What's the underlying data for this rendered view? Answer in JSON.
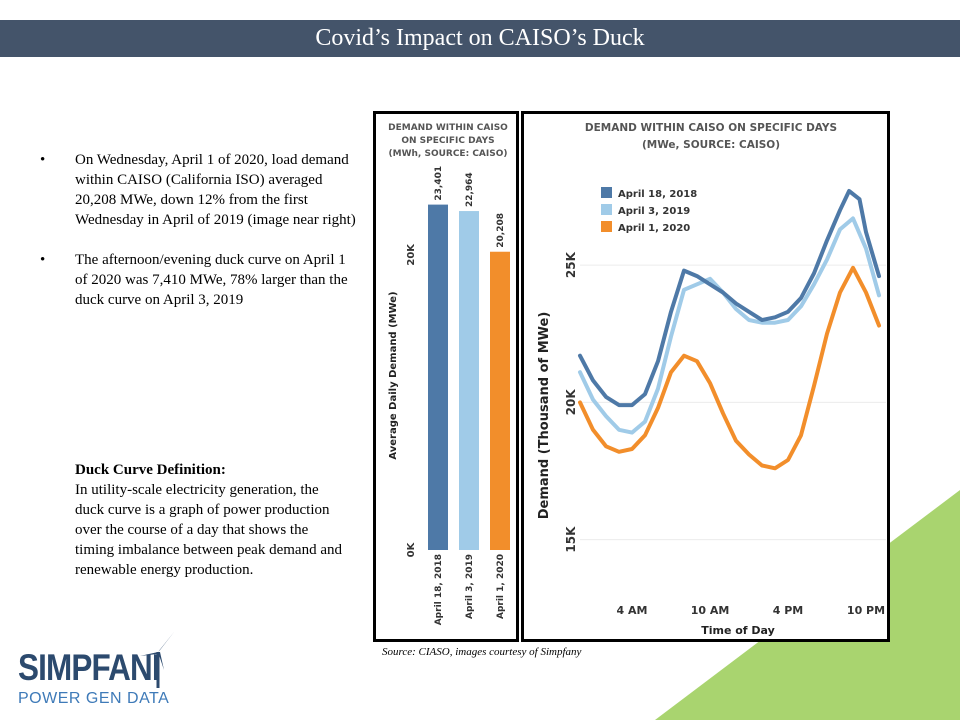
{
  "title": "Covid’s Impact on CAISO’s Duck",
  "bullets": [
    "On Wednesday, April 1 of 2020, load demand within CAISO (California ISO) averaged 20,208 MWe, down 12% from the first Wednesday in April of 2019 (image near right)",
    "The afternoon/evening duck curve on April 1 of 2020 was 7,410 MWe, 78% larger than the duck curve on April 3, 2019"
  ],
  "definition": {
    "term": "Duck Curve Definition:",
    "text": "In utility-scale electricity generation, the duck curve is a graph of power production over the course of a day that shows the timing imbalance between peak demand and renewable energy production."
  },
  "source": "Source: CIASO, images courtesy of Simpfany",
  "logo": {
    "name": "SIMPFANI",
    "tagline": "POWER GEN DATA"
  },
  "colors": {
    "title_bar": "#44546a",
    "series_2018": "#4e79a7",
    "series_2019": "#a0cbe8",
    "series_2020": "#f28e2b",
    "accent_green": "#a9d46f"
  },
  "chart_data": [
    {
      "type": "bar",
      "title": [
        "DEMAND WITHIN CAISO",
        "ON SPECIFIC DAYS",
        "(MWh, SOURCE: CAISO)"
      ],
      "ylabel": "Average Daily Demand (MWe)",
      "ylim": [
        0,
        25000
      ],
      "y_ticks": [
        0,
        20000
      ],
      "y_tick_labels": [
        "0K",
        "20K"
      ],
      "categories": [
        "April 18, 2018",
        "April 3, 2019",
        "April 1, 2020"
      ],
      "values": [
        23401,
        22964,
        20208
      ],
      "value_labels": [
        "23,401",
        "22,964",
        "20,208"
      ],
      "colors": [
        "#4e79a7",
        "#a0cbe8",
        "#f28e2b"
      ]
    },
    {
      "type": "line",
      "title": [
        "DEMAND WITHIN CAISO ON SPECIFIC DAYS",
        "(MWe, SOURCE: CAISO)"
      ],
      "xlabel": "Time of Day",
      "ylabel": "Demand (Thousand of MWe)",
      "xlim": [
        0,
        24
      ],
      "ylim": [
        12,
        28.5
      ],
      "x_ticks": [
        4,
        10,
        16,
        22
      ],
      "x_tick_labels": [
        "4 AM",
        "10 AM",
        "4 PM",
        "10 PM"
      ],
      "y_ticks": [
        15,
        20,
        25
      ],
      "y_tick_labels": [
        "15K",
        "20K",
        "25K"
      ],
      "legend_position": "top-left",
      "series": [
        {
          "name": "April 18, 2018",
          "color": "#4e79a7",
          "x": [
            0,
            1,
            2,
            3,
            4,
            5,
            6,
            7,
            8,
            9,
            10,
            11,
            12,
            13,
            14,
            15,
            16,
            17,
            18,
            19,
            20,
            20.7,
            21.5,
            22,
            23
          ],
          "y": [
            21.7,
            20.8,
            20.2,
            19.9,
            19.9,
            20.3,
            21.5,
            23.3,
            24.8,
            24.6,
            24.3,
            24.0,
            23.6,
            23.3,
            23.0,
            23.1,
            23.3,
            23.8,
            24.7,
            25.9,
            27.0,
            27.7,
            27.4,
            26.2,
            24.6
          ]
        },
        {
          "name": "April 3, 2019",
          "color": "#a0cbe8",
          "x": [
            0,
            1,
            2,
            3,
            4,
            5,
            6,
            7,
            8,
            9,
            10,
            11,
            12,
            13,
            14,
            15,
            16,
            17,
            18,
            19,
            20,
            21,
            22,
            23
          ],
          "y": [
            21.1,
            20.1,
            19.5,
            19.0,
            18.9,
            19.3,
            20.5,
            22.4,
            24.1,
            24.3,
            24.5,
            24.0,
            23.4,
            23.0,
            22.9,
            22.9,
            23.0,
            23.5,
            24.3,
            25.2,
            26.3,
            26.7,
            25.6,
            23.9
          ]
        },
        {
          "name": "April 1, 2020",
          "color": "#f28e2b",
          "x": [
            0,
            1,
            2,
            3,
            4,
            5,
            6,
            7,
            8,
            9,
            10,
            11,
            12,
            13,
            14,
            15,
            16,
            17,
            18,
            19,
            20,
            21,
            22,
            23
          ],
          "y": [
            20.0,
            19.0,
            18.4,
            18.2,
            18.3,
            18.8,
            19.8,
            21.1,
            21.7,
            21.5,
            20.7,
            19.6,
            18.6,
            18.1,
            17.7,
            17.6,
            17.9,
            18.8,
            20.6,
            22.5,
            24.0,
            24.9,
            24.0,
            22.8
          ]
        }
      ]
    }
  ]
}
